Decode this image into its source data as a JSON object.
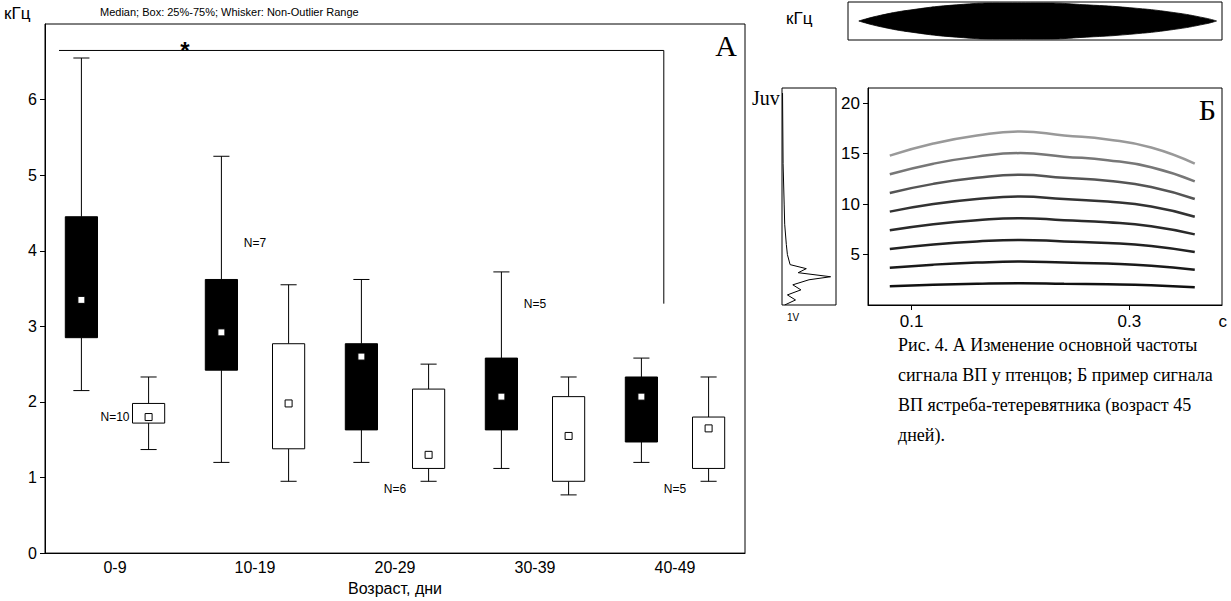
{
  "chart_data": [
    {
      "type": "boxplot",
      "panel": "А",
      "subtitle": "Median; Box: 25%-75%; Whisker: Non-Outlier Range",
      "y_label": "кГц",
      "x_label": "Возраст, дни",
      "icon_label": "Juv",
      "categories": [
        "0-9",
        "10-19",
        "20-29",
        "30-39",
        "40-49"
      ],
      "series": [
        {
          "color": "#000000",
          "whisker_low": [
            2.15,
            1.2,
            1.2,
            1.12,
            1.2
          ],
          "q1": [
            2.85,
            2.42,
            1.63,
            1.63,
            1.47
          ],
          "median": [
            3.35,
            2.92,
            2.6,
            2.07,
            2.07
          ],
          "q3": [
            4.45,
            3.62,
            2.77,
            2.58,
            2.33
          ],
          "whisker_high": [
            6.55,
            5.25,
            3.62,
            3.72,
            2.58
          ]
        },
        {
          "color": "#ffffff",
          "whisker_low": [
            1.37,
            0.95,
            0.95,
            0.77,
            0.95
          ],
          "q1": [
            1.72,
            1.38,
            1.12,
            0.95,
            1.12
          ],
          "median": [
            1.8,
            1.98,
            1.3,
            1.55,
            1.65
          ],
          "q3": [
            1.98,
            2.77,
            2.17,
            2.07,
            1.8
          ],
          "whisker_high": [
            2.33,
            3.55,
            2.5,
            2.33,
            2.33
          ]
        }
      ],
      "ylim": [
        0,
        7
      ],
      "yticks": [
        0,
        1,
        2,
        3,
        4,
        5,
        6
      ],
      "grid": false,
      "annotations": [
        {
          "text": "N=10",
          "category": "0-9",
          "y": 1.8
        },
        {
          "text": "N=7",
          "category": "10-19",
          "y": 4.1
        },
        {
          "text": "N=6",
          "category": "20-29",
          "y": 0.85
        },
        {
          "text": "N=5",
          "category": "30-39",
          "y": 3.3
        },
        {
          "text": "N=5",
          "category": "40-49",
          "y": 0.85
        }
      ],
      "bracket": {
        "from": "0-9",
        "to": "40-49",
        "y": 6.65,
        "end_y": 3.3,
        "label": "*"
      }
    },
    {
      "type": "line",
      "panel": "Б",
      "y_label": "кГц",
      "x_label": "с",
      "x": [
        0.08,
        0.12,
        0.16,
        0.2,
        0.24,
        0.28,
        0.32,
        0.36
      ],
      "series": [
        {
          "color": "#111111",
          "values": [
            1.85,
            2.0,
            2.1,
            2.15,
            2.1,
            2.05,
            1.95,
            1.75
          ]
        },
        {
          "color": "#1a1a1a",
          "values": [
            3.7,
            4.0,
            4.2,
            4.3,
            4.2,
            4.1,
            3.9,
            3.5
          ]
        },
        {
          "color": "#222222",
          "values": [
            5.55,
            6.0,
            6.3,
            6.45,
            6.3,
            6.15,
            5.85,
            5.25
          ]
        },
        {
          "color": "#2a2a2a",
          "values": [
            7.4,
            8.0,
            8.4,
            8.6,
            8.4,
            8.2,
            7.8,
            7.0
          ]
        },
        {
          "color": "#333333",
          "values": [
            9.25,
            10.0,
            10.5,
            10.75,
            10.5,
            10.25,
            9.75,
            8.75
          ]
        },
        {
          "color": "#555555",
          "values": [
            11.1,
            12.0,
            12.6,
            12.9,
            12.6,
            12.3,
            11.7,
            10.5
          ]
        },
        {
          "color": "#777777",
          "values": [
            12.95,
            14.0,
            14.7,
            15.05,
            14.7,
            14.35,
            13.65,
            12.25
          ]
        },
        {
          "color": "#999999",
          "values": [
            14.8,
            16.0,
            16.8,
            17.2,
            16.8,
            16.4,
            15.6,
            14.0
          ]
        }
      ],
      "xlim": [
        0.06,
        0.385
      ],
      "xticks": [
        0.1,
        0.3
      ],
      "ylim": [
        0,
        21.5
      ],
      "yticks": [
        5,
        10,
        15,
        20
      ],
      "grid": false
    },
    {
      "type": "area",
      "x": [
        0.05,
        0.07,
        0.1,
        0.14,
        0.18,
        0.22,
        0.26,
        0.3,
        0.34,
        0.37,
        0.38
      ],
      "series": [
        {
          "color": "#000000",
          "values": [
            0,
            0.3,
            0.6,
            0.85,
            0.95,
            0.95,
            0.85,
            0.7,
            0.45,
            0.15,
            0
          ]
        },
        {
          "color": "#000000",
          "values": [
            0,
            -0.3,
            -0.6,
            -0.85,
            -0.95,
            -0.95,
            -0.85,
            -0.7,
            -0.45,
            -0.15,
            0
          ]
        }
      ],
      "xlim": [
        0.04,
        0.385
      ],
      "ylim": [
        -1,
        1
      ],
      "tick_labels": false,
      "grid": false
    },
    {
      "type": "line",
      "orientation": "horizontal",
      "x_label": "1V",
      "x": [
        0,
        0.5,
        1,
        1.5,
        2,
        2.5,
        2.8,
        3.2,
        3.6,
        4,
        5,
        6,
        8,
        10,
        14,
        21
      ],
      "values": [
        0.05,
        0.25,
        0.1,
        0.35,
        0.2,
        0.5,
        0.9,
        0.3,
        0.45,
        0.15,
        0.1,
        0.08,
        0.05,
        0.04,
        0.02,
        0.01
      ],
      "color": "#000000",
      "xlim": [
        0,
        21.5
      ],
      "ylim": [
        0,
        1
      ],
      "tick_labels": false,
      "grid": false
    }
  ],
  "caption": "Рис. 4. А Изменение основной частоты сигнала ВП у птенцов; Б пример сигнала ВП ястреба-тетеревятника (возраст 45 дней)."
}
